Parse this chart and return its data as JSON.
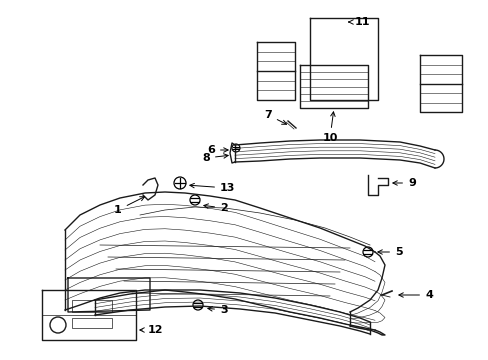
{
  "background_color": "#ffffff",
  "line_color": "#1a1a1a",
  "fig_w": 4.89,
  "fig_h": 3.6,
  "dpi": 100
}
